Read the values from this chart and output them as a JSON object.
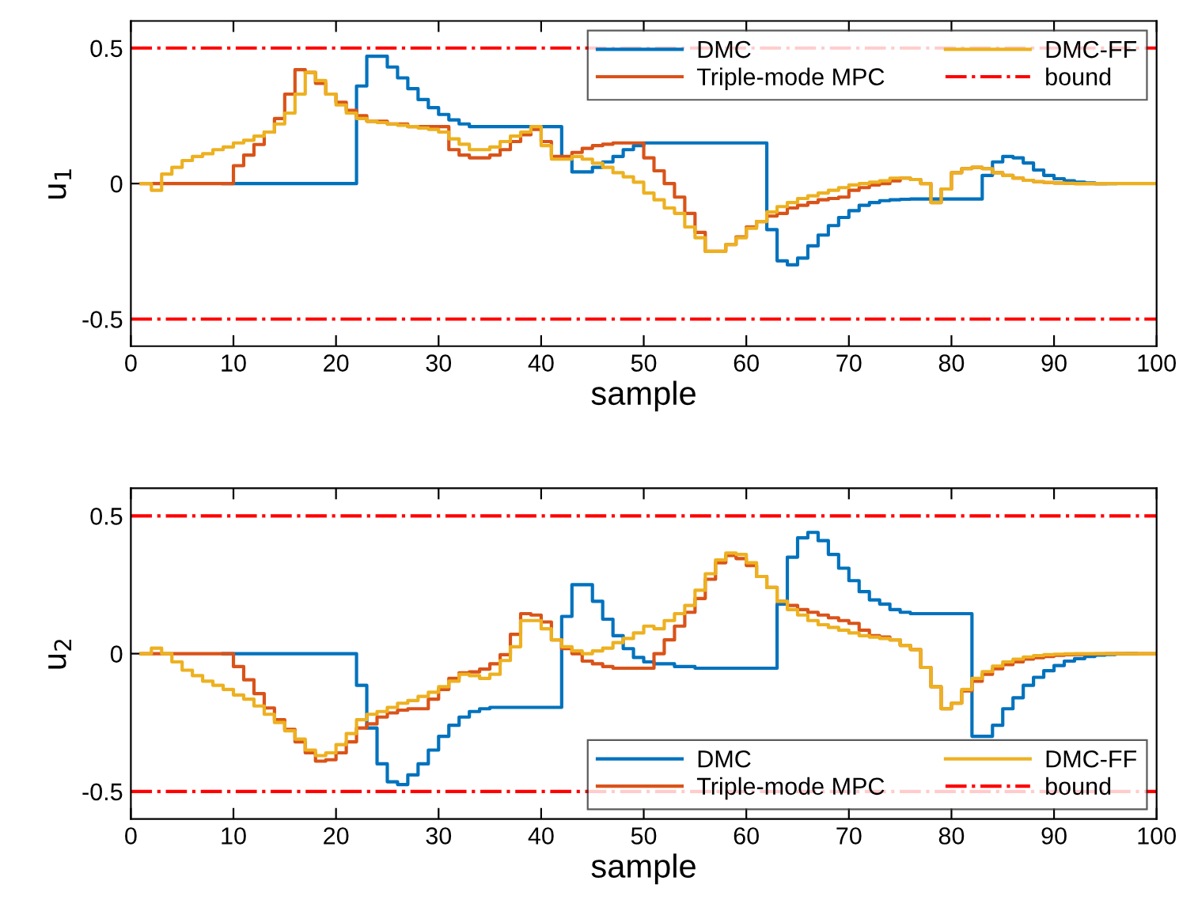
{
  "chart_data": [
    {
      "type": "step",
      "xlabel": "sample",
      "ylabel": "u$_{1}$",
      "xlim": [
        0,
        100
      ],
      "xticks": [
        0,
        10,
        20,
        30,
        40,
        50,
        60,
        70,
        80,
        90,
        100
      ],
      "ylim": [
        -0.6,
        0.6
      ],
      "yticks": [
        -0.5,
        0,
        0.5
      ],
      "grid": false,
      "legend": "top right",
      "x": [
        1,
        2,
        3,
        4,
        5,
        6,
        7,
        8,
        9,
        10,
        11,
        12,
        13,
        14,
        15,
        16,
        17,
        18,
        19,
        20,
        21,
        22,
        23,
        24,
        25,
        26,
        27,
        28,
        29,
        30,
        31,
        32,
        33,
        34,
        35,
        36,
        37,
        38,
        39,
        40,
        41,
        42,
        43,
        44,
        45,
        46,
        47,
        48,
        49,
        50,
        51,
        52,
        53,
        54,
        55,
        56,
        57,
        58,
        59,
        60,
        61,
        62,
        63,
        64,
        65,
        66,
        67,
        68,
        69,
        70,
        71,
        72,
        73,
        74,
        75,
        76,
        77,
        78,
        79,
        80,
        81,
        82,
        83,
        84,
        85,
        86,
        87,
        88,
        89,
        90,
        91,
        92,
        93,
        94,
        95,
        96,
        97,
        98,
        99,
        100
      ],
      "series": [
        {
          "name": "DMC",
          "color": "#0072bd",
          "values": [
            null,
            null,
            null,
            null,
            null,
            null,
            null,
            null,
            0,
            0,
            0,
            0,
            0,
            0,
            0,
            0,
            0,
            0,
            0,
            0,
            0,
            0.36,
            0.47,
            0.47,
            0.43,
            0.39,
            0.35,
            0.31,
            0.28,
            0.255,
            0.235,
            0.22,
            0.21,
            0.21,
            0.21,
            0.21,
            0.21,
            0.21,
            0.21,
            0.21,
            0.21,
            0.095,
            0.043,
            0.043,
            0.06,
            0.08,
            0.1,
            0.125,
            0.14,
            0.15,
            0.15,
            0.15,
            0.15,
            0.15,
            0.15,
            0.15,
            0.15,
            0.15,
            0.15,
            0.15,
            0.15,
            -0.17,
            -0.285,
            -0.3,
            -0.275,
            -0.23,
            -0.19,
            -0.155,
            -0.125,
            -0.1,
            -0.08,
            -0.07,
            -0.063,
            -0.06,
            -0.058,
            -0.057,
            -0.057,
            -0.057,
            -0.057,
            -0.057,
            -0.057,
            -0.057,
            0.03,
            0.08,
            0.1,
            0.095,
            0.076,
            0.05,
            0.03,
            0.018,
            0.01,
            0.005,
            0.002,
            0,
            0,
            0,
            null,
            null,
            null,
            null
          ]
        },
        {
          "name": "Triple-mode MPC",
          "color": "#d95319",
          "values": [
            0,
            0,
            0,
            0,
            0,
            0,
            0,
            0,
            0,
            0.066,
            0.105,
            0.144,
            0.19,
            0.24,
            0.33,
            0.42,
            0.41,
            0.37,
            0.33,
            0.3,
            0.27,
            0.25,
            0.23,
            0.23,
            0.22,
            0.22,
            0.21,
            0.21,
            0.21,
            0.21,
            0.125,
            0.105,
            0.095,
            0.095,
            0.105,
            0.125,
            0.155,
            0.18,
            0.2,
            0.155,
            0.1,
            0.1,
            0.115,
            0.13,
            0.14,
            0.145,
            0.15,
            0.15,
            0.15,
            0.095,
            0.047,
            0,
            -0.05,
            -0.11,
            -0.18,
            -0.25,
            -0.25,
            -0.225,
            -0.197,
            -0.16,
            -0.14,
            -0.12,
            -0.11,
            -0.09,
            -0.08,
            -0.07,
            -0.06,
            -0.055,
            -0.05,
            -0.025,
            -0.015,
            -0.005,
            0,
            0.01,
            0.02,
            0.015,
            0,
            -0.07,
            -0.02,
            0.04,
            0.055,
            0.06,
            0.055,
            0.04,
            0.03,
            0.02,
            0.012,
            0.007,
            0.004,
            0.002,
            0.001,
            0,
            0,
            0,
            0,
            null,
            null,
            null,
            null,
            null
          ]
        },
        {
          "name": "DMC-FF",
          "color": "#edb120",
          "values": [
            0,
            -0.025,
            0.035,
            0.06,
            0.085,
            0.1,
            0.11,
            0.125,
            0.135,
            0.15,
            0.16,
            0.175,
            0.19,
            0.22,
            0.26,
            0.33,
            0.41,
            0.38,
            0.33,
            0.29,
            0.26,
            0.24,
            0.23,
            0.225,
            0.22,
            0.215,
            0.21,
            0.205,
            0.2,
            0.19,
            0.165,
            0.145,
            0.125,
            0.125,
            0.135,
            0.155,
            0.175,
            0.19,
            0.21,
            0.14,
            0.09,
            0.09,
            0.1,
            0.09,
            0.075,
            0.06,
            0.04,
            0.025,
            0.005,
            -0.035,
            -0.06,
            -0.09,
            -0.11,
            -0.16,
            -0.2,
            -0.25,
            -0.25,
            -0.225,
            -0.2,
            -0.165,
            -0.14,
            -0.105,
            -0.085,
            -0.07,
            -0.055,
            -0.045,
            -0.035,
            -0.025,
            -0.015,
            -0.005,
            0,
            0.005,
            0.01,
            0.02,
            0.02,
            0.015,
            0,
            -0.07,
            -0.02,
            0.04,
            0.055,
            0.06,
            0.055,
            0.04,
            0.03,
            0.02,
            0.012,
            0.007,
            0.004,
            0.002,
            0.001,
            0,
            0,
            0,
            0,
            0,
            0,
            0,
            0,
            0
          ]
        }
      ],
      "ref_lines": [
        {
          "axis": "y",
          "value": 0.5,
          "label": "bound",
          "color": "#ff0000",
          "line_style": "dashdot"
        },
        {
          "axis": "y",
          "value": -0.5,
          "color": "#ff0000",
          "line_style": "dashdot"
        }
      ]
    },
    {
      "type": "step",
      "xlabel": "sample",
      "ylabel": "u$_{2}$",
      "xlim": [
        0,
        100
      ],
      "xticks": [
        0,
        10,
        20,
        30,
        40,
        50,
        60,
        70,
        80,
        90,
        100
      ],
      "ylim": [
        -0.6,
        0.6
      ],
      "yticks": [
        -0.5,
        0,
        0.5
      ],
      "grid": false,
      "legend": "bottom right",
      "x": [
        1,
        2,
        3,
        4,
        5,
        6,
        7,
        8,
        9,
        10,
        11,
        12,
        13,
        14,
        15,
        16,
        17,
        18,
        19,
        20,
        21,
        22,
        23,
        24,
        25,
        26,
        27,
        28,
        29,
        30,
        31,
        32,
        33,
        34,
        35,
        36,
        37,
        38,
        39,
        40,
        41,
        42,
        43,
        44,
        45,
        46,
        47,
        48,
        49,
        50,
        51,
        52,
        53,
        54,
        55,
        56,
        57,
        58,
        59,
        60,
        61,
        62,
        63,
        64,
        65,
        66,
        67,
        68,
        69,
        70,
        71,
        72,
        73,
        74,
        75,
        76,
        77,
        78,
        79,
        80,
        81,
        82,
        83,
        84,
        85,
        86,
        87,
        88,
        89,
        90,
        91,
        92,
        93,
        94,
        95,
        96,
        97,
        98,
        99,
        100
      ],
      "series": [
        {
          "name": "DMC",
          "color": "#0072bd",
          "values": [
            null,
            null,
            null,
            null,
            null,
            null,
            null,
            null,
            0,
            0,
            0,
            0,
            0,
            0,
            0,
            0,
            0,
            0,
            0,
            0,
            0,
            -0.115,
            -0.27,
            -0.4,
            -0.465,
            -0.475,
            -0.44,
            -0.4,
            -0.35,
            -0.3,
            -0.26,
            -0.23,
            -0.21,
            -0.2,
            -0.195,
            -0.195,
            -0.195,
            -0.195,
            -0.195,
            -0.195,
            -0.195,
            0.135,
            0.25,
            0.25,
            0.19,
            0.125,
            0.065,
            0.018,
            -0.014,
            -0.03,
            -0.037,
            -0.037,
            -0.047,
            -0.047,
            -0.053,
            -0.053,
            -0.053,
            -0.053,
            -0.053,
            -0.053,
            -0.053,
            -0.053,
            0.18,
            0.35,
            0.42,
            0.44,
            0.41,
            0.36,
            0.31,
            0.265,
            0.225,
            0.195,
            0.18,
            0.16,
            0.15,
            0.145,
            0.145,
            0.145,
            0.145,
            0.145,
            0.145,
            -0.3,
            -0.3,
            -0.26,
            -0.2,
            -0.16,
            -0.115,
            -0.086,
            -0.062,
            -0.043,
            -0.027,
            -0.018,
            -0.01,
            -0.005,
            -0.003,
            -0.001,
            0,
            0,
            null,
            null
          ]
        },
        {
          "name": "Triple-mode MPC",
          "color": "#d95319",
          "values": [
            0,
            0,
            0,
            0,
            0,
            0,
            0,
            0,
            0,
            -0.047,
            -0.095,
            -0.145,
            -0.197,
            -0.24,
            -0.275,
            -0.32,
            -0.36,
            -0.39,
            -0.385,
            -0.36,
            -0.32,
            -0.27,
            -0.255,
            -0.23,
            -0.215,
            -0.205,
            -0.2,
            -0.2,
            -0.165,
            -0.13,
            -0.09,
            -0.07,
            -0.066,
            -0.056,
            -0.037,
            -0.004,
            0.07,
            0.145,
            0.14,
            0.115,
            0.05,
            0.018,
            0,
            -0.027,
            -0.037,
            -0.047,
            -0.053,
            -0.053,
            -0.053,
            -0.053,
            0,
            0.05,
            0.1,
            0.15,
            0.2,
            0.27,
            0.33,
            0.356,
            0.345,
            0.32,
            0.28,
            0.24,
            0.19,
            0.175,
            0.16,
            0.15,
            0.14,
            0.13,
            0.12,
            0.11,
            0.085,
            0.065,
            0.06,
            0.05,
            0.03,
            0.015,
            -0.05,
            -0.12,
            -0.2,
            -0.18,
            -0.135,
            -0.1,
            -0.075,
            -0.055,
            -0.04,
            -0.03,
            -0.02,
            -0.015,
            -0.01,
            -0.006,
            -0.004,
            -0.003,
            -0.002,
            -0.001,
            0,
            0,
            0,
            0,
            0,
            0
          ]
        },
        {
          "name": "DMC-FF",
          "color": "#edb120",
          "values": [
            0,
            0.02,
            0,
            -0.03,
            -0.06,
            -0.08,
            -0.1,
            -0.115,
            -0.13,
            -0.15,
            -0.165,
            -0.19,
            -0.22,
            -0.25,
            -0.28,
            -0.31,
            -0.35,
            -0.37,
            -0.36,
            -0.33,
            -0.29,
            -0.24,
            -0.22,
            -0.21,
            -0.195,
            -0.18,
            -0.17,
            -0.155,
            -0.14,
            -0.12,
            -0.1,
            -0.075,
            -0.08,
            -0.09,
            -0.075,
            -0.025,
            0.025,
            0.12,
            0.12,
            0.09,
            0.05,
            0.025,
            0.01,
            0,
            0.01,
            0.02,
            0.04,
            0.055,
            0.075,
            0.1,
            0.09,
            0.12,
            0.145,
            0.175,
            0.23,
            0.29,
            0.34,
            0.365,
            0.36,
            0.33,
            0.28,
            0.24,
            0.19,
            0.16,
            0.14,
            0.12,
            0.105,
            0.095,
            0.085,
            0.075,
            0.065,
            0.06,
            0.055,
            0.05,
            0.03,
            0.015,
            -0.05,
            -0.12,
            -0.2,
            -0.18,
            -0.13,
            -0.09,
            -0.065,
            -0.045,
            -0.03,
            -0.02,
            -0.012,
            -0.007,
            -0.004,
            -0.002,
            -0.001,
            0,
            0,
            0,
            0,
            0,
            0,
            0,
            0,
            0
          ]
        }
      ],
      "ref_lines": [
        {
          "axis": "y",
          "value": 0.5,
          "label": "bound",
          "color": "#ff0000",
          "line_style": "dashdot"
        },
        {
          "axis": "y",
          "value": -0.5,
          "color": "#ff0000",
          "line_style": "dashdot"
        }
      ]
    }
  ]
}
